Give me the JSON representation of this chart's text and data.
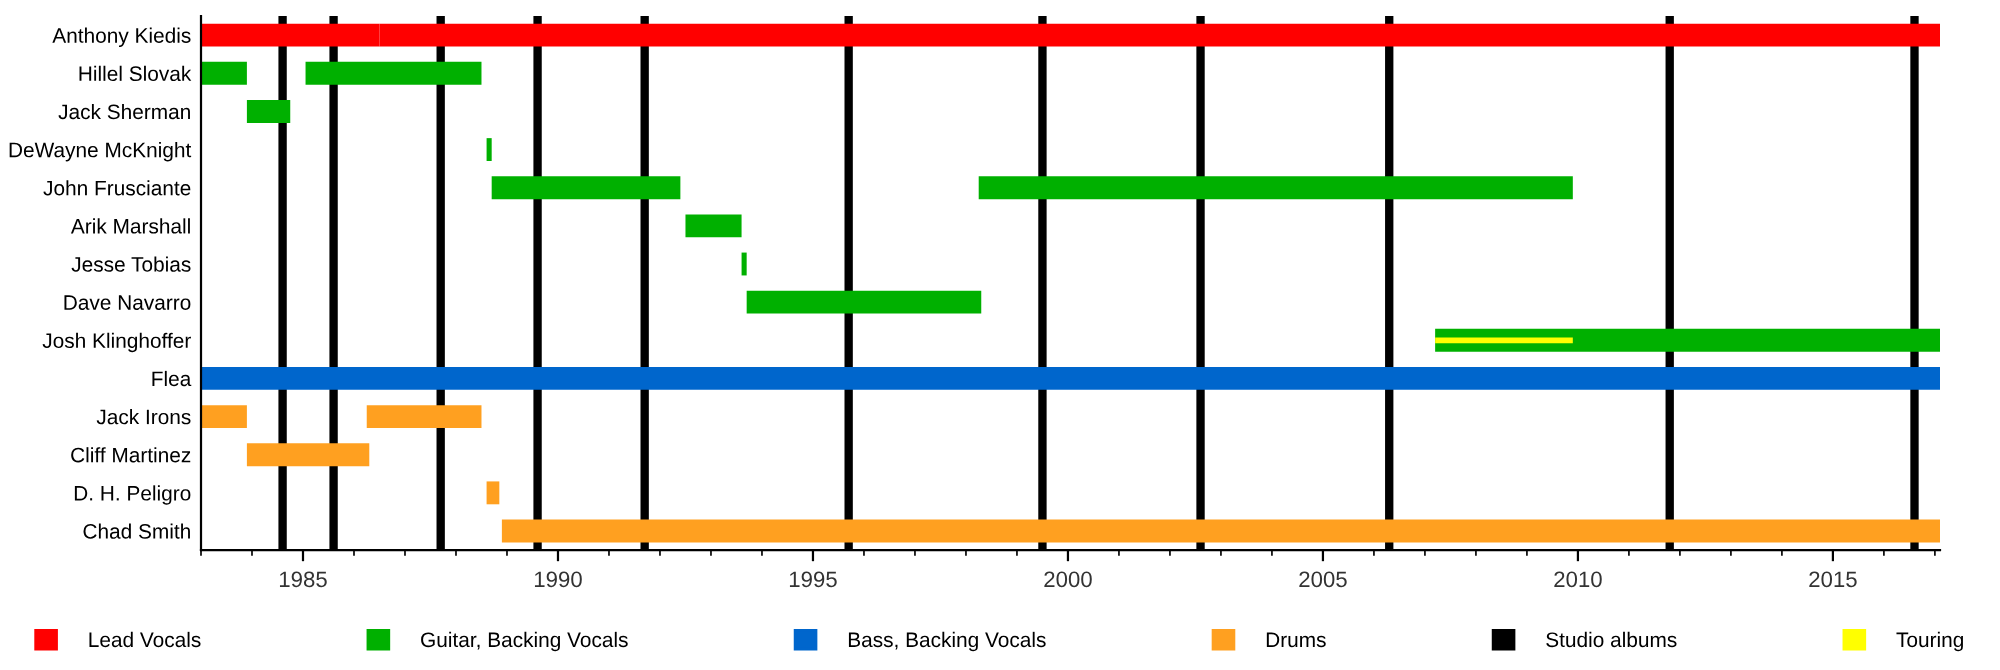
{
  "chart_data": {
    "type": "bar",
    "orientation": "horizontal",
    "categories": [
      "Anthony Kiedis",
      "Hillel Slovak",
      "Jack Sherman",
      "DeWayne McKnight",
      "John Frusciante",
      "Arik Marshall",
      "Jesse Tobias",
      "Dave Navarro",
      "Josh Klinghoffer",
      "Flea",
      "Jack Irons",
      "Cliff Martinez",
      "D. H. Peligro",
      "Chad Smith"
    ],
    "series": [
      {
        "name": "Lead Vocals",
        "color": "#ff0000",
        "base": [
          1983,
          null,
          null,
          null,
          null,
          null,
          null,
          null,
          null,
          null,
          null,
          null,
          null,
          null
        ],
        "values": [
          3.5,
          null,
          null,
          null,
          null,
          null,
          null,
          null,
          null,
          null,
          null,
          null,
          null,
          null
        ]
      },
      {
        "color": "#ff0000",
        "base": [
          1986.5,
          null,
          null,
          null,
          null,
          null,
          null,
          null,
          null,
          null,
          null,
          null,
          null,
          null
        ],
        "values": [
          30.6,
          null,
          null,
          null,
          null,
          null,
          null,
          null,
          null,
          null,
          null,
          null,
          null,
          null
        ]
      },
      {
        "name": "Guitar, Backing Vocals",
        "color": "#00b000",
        "base": [
          null,
          1983,
          1983.9,
          1988.6,
          1988.7,
          1992.5,
          1993.6,
          1993.7,
          2007.2,
          null,
          null,
          null,
          null,
          null
        ],
        "values": [
          null,
          0.9,
          0.85,
          0.1,
          3.7,
          1.1,
          0.1,
          4.6,
          9.9,
          null,
          null,
          null,
          null,
          null
        ]
      },
      {
        "color": "#00b000",
        "base": [
          null,
          1985.05,
          null,
          null,
          1998.25,
          null,
          null,
          null,
          null,
          null,
          null,
          null,
          null,
          null
        ],
        "values": [
          null,
          3.45,
          null,
          null,
          11.65,
          null,
          null,
          null,
          null,
          null,
          null,
          null,
          null,
          null
        ]
      },
      {
        "name": "Bass, Backing Vocals",
        "color": "#0066cc",
        "base": [
          null,
          null,
          null,
          null,
          null,
          null,
          null,
          null,
          null,
          1983,
          null,
          null,
          null,
          null
        ],
        "values": [
          null,
          null,
          null,
          null,
          null,
          null,
          null,
          null,
          null,
          34.1,
          null,
          null,
          null,
          null
        ]
      },
      {
        "name": "Drums",
        "color": "#ffa020",
        "base": [
          null,
          null,
          null,
          null,
          null,
          null,
          null,
          null,
          null,
          null,
          1983,
          1983.9,
          1988.6,
          1988.9
        ],
        "values": [
          null,
          null,
          null,
          null,
          null,
          null,
          null,
          null,
          null,
          null,
          0.9,
          2.4,
          0.25,
          28.2
        ]
      },
      {
        "color": "#ffa020",
        "base": [
          null,
          null,
          null,
          null,
          null,
          null,
          null,
          null,
          null,
          null,
          1986.25,
          null,
          null,
          null
        ],
        "values": [
          null,
          null,
          null,
          null,
          null,
          null,
          null,
          null,
          null,
          null,
          2.25,
          null,
          null,
          null
        ]
      },
      {
        "name": "Touring",
        "color": "#ffff00",
        "base": [
          null,
          null,
          null,
          null,
          null,
          null,
          null,
          null,
          2007.2,
          null,
          null,
          null,
          null,
          null
        ],
        "values": [
          null,
          null,
          null,
          null,
          null,
          null,
          null,
          null,
          2.7,
          null,
          null,
          null,
          null,
          null
        ]
      }
    ],
    "ref_lines": [
      {
        "axis": "x",
        "value": 1984.6,
        "label": "Studio albums",
        "color": "#000000"
      },
      {
        "axis": "x",
        "value": 1985.6,
        "color": "#000000"
      },
      {
        "axis": "x",
        "value": 1987.7,
        "color": "#000000"
      },
      {
        "axis": "x",
        "value": 1989.6,
        "color": "#000000"
      },
      {
        "axis": "x",
        "value": 1991.7,
        "color": "#000000"
      },
      {
        "axis": "x",
        "value": 1995.7,
        "color": "#000000"
      },
      {
        "axis": "x",
        "value": 1999.5,
        "color": "#000000"
      },
      {
        "axis": "x",
        "value": 2002.6,
        "color": "#000000"
      },
      {
        "axis": "x",
        "value": 2006.3,
        "color": "#000000"
      },
      {
        "axis": "x",
        "value": 2011.8,
        "color": "#000000"
      },
      {
        "axis": "x",
        "value": 2016.6,
        "color": "#000000"
      }
    ],
    "xlim": [
      1983,
      2017.1
    ],
    "xticks": [
      1985,
      1990,
      1995,
      2000,
      2005,
      2010,
      2015
    ],
    "grid": false,
    "legend": "bottom"
  }
}
